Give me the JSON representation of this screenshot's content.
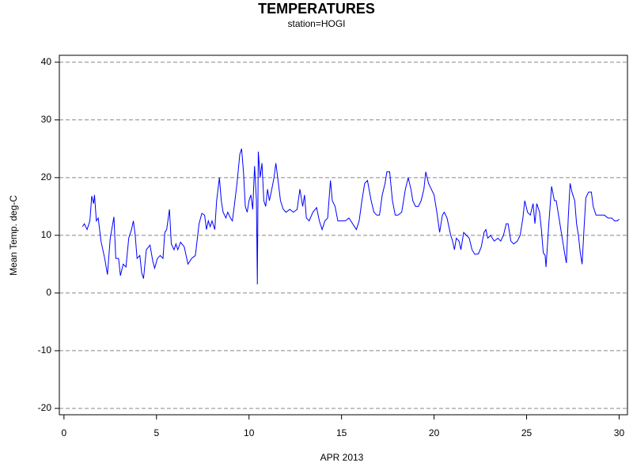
{
  "chart_data": {
    "type": "line",
    "title": "TEMPERATURES",
    "subtitle": "station=HOGI",
    "xlabel": "APR 2013",
    "ylabel": "Mean Temp. deg-C",
    "xlim": [
      -0.25,
      30.45
    ],
    "ylim": [
      -21.1,
      41.2
    ],
    "xticks": [
      0,
      5,
      10,
      15,
      20,
      25,
      30
    ],
    "yticks": [
      -20,
      -10,
      0,
      10,
      20,
      30,
      40
    ],
    "grid": true,
    "x": [
      1.0,
      1.1,
      1.25,
      1.4,
      1.5,
      1.6,
      1.65,
      1.75,
      1.85,
      2.0,
      2.2,
      2.35,
      2.5,
      2.7,
      2.8,
      2.95,
      3.05,
      3.2,
      3.35,
      3.5,
      3.65,
      3.75,
      3.85,
      3.95,
      4.1,
      4.2,
      4.3,
      4.45,
      4.65,
      4.8,
      4.9,
      5.05,
      5.2,
      5.35,
      5.45,
      5.55,
      5.7,
      5.8,
      5.95,
      6.05,
      6.15,
      6.3,
      6.5,
      6.7,
      6.9,
      7.1,
      7.3,
      7.45,
      7.6,
      7.7,
      7.8,
      7.9,
      8.0,
      8.15,
      8.25,
      8.4,
      8.5,
      8.6,
      8.75,
      8.85,
      9.0,
      9.1,
      9.2,
      9.35,
      9.5,
      9.6,
      9.7,
      9.8,
      9.9,
      10.0,
      10.1,
      10.2,
      10.3,
      10.4,
      10.45,
      10.5,
      10.6,
      10.7,
      10.8,
      10.9,
      11.0,
      11.1,
      11.2,
      11.35,
      11.45,
      11.55,
      11.7,
      11.85,
      12.0,
      12.2,
      12.4,
      12.6,
      12.75,
      12.9,
      13.0,
      13.1,
      13.25,
      13.45,
      13.65,
      13.8,
      13.95,
      14.1,
      14.25,
      14.4,
      14.5,
      14.65,
      14.8,
      15.0,
      15.2,
      15.4,
      15.6,
      15.8,
      15.95,
      16.1,
      16.25,
      16.4,
      16.6,
      16.75,
      16.9,
      17.05,
      17.2,
      17.35,
      17.45,
      17.6,
      17.75,
      17.9,
      18.05,
      18.25,
      18.45,
      18.6,
      18.75,
      18.85,
      19.0,
      19.15,
      19.3,
      19.45,
      19.55,
      19.7,
      19.85,
      20.0,
      20.15,
      20.3,
      20.45,
      20.55,
      20.7,
      20.9,
      21.0,
      21.1,
      21.2,
      21.35,
      21.45,
      21.6,
      21.75,
      21.9,
      22.05,
      22.2,
      22.4,
      22.55,
      22.7,
      22.8,
      22.9,
      23.05,
      23.25,
      23.45,
      23.6,
      23.75,
      23.9,
      24.0,
      24.15,
      24.3,
      24.5,
      24.65,
      24.8,
      24.9,
      25.05,
      25.2,
      25.35,
      25.45,
      25.55,
      25.7,
      25.8,
      25.9,
      26.0,
      26.05,
      26.2,
      26.35,
      26.5,
      26.6,
      26.7,
      26.8,
      26.95,
      27.05,
      27.15,
      27.25,
      27.35,
      27.45,
      27.6,
      27.7,
      27.8,
      27.9,
      28.0,
      28.1,
      28.2,
      28.35,
      28.5,
      28.6,
      28.75,
      29.0,
      29.2,
      29.4,
      29.6,
      29.75,
      29.9,
      30.0
    ],
    "series": [
      {
        "color": "#0000ff",
        "values": [
          11.5,
          12,
          11,
          12.5,
          16.8,
          15.5,
          17,
          12.5,
          13,
          9,
          6,
          3.2,
          9.5,
          13.2,
          6,
          6,
          3,
          5,
          4.5,
          9.5,
          11,
          12.5,
          10,
          6,
          6.5,
          3.5,
          2.5,
          7.5,
          8.3,
          5.5,
          4.3,
          6,
          6.5,
          6,
          10.5,
          11,
          14.5,
          8.5,
          7.5,
          8.5,
          7.5,
          8.8,
          8,
          5,
          6,
          6.5,
          12,
          13.8,
          13.5,
          11,
          12.5,
          11.5,
          12.5,
          11,
          16,
          20,
          16,
          14,
          13,
          14,
          13,
          12.5,
          15,
          19,
          24,
          25,
          21,
          15,
          14,
          16,
          17,
          14.5,
          22,
          16,
          1.5,
          24.5,
          20,
          22.5,
          16,
          15,
          18,
          16,
          17.5,
          20,
          22.5,
          20,
          16,
          14.5,
          14,
          14.5,
          14,
          14.5,
          18,
          15,
          17,
          13,
          12.5,
          14,
          14.8,
          12.5,
          11,
          12.5,
          13,
          19.5,
          16,
          15,
          12.5,
          12.5,
          12.5,
          13,
          12,
          11,
          12.5,
          16,
          19,
          19.5,
          16,
          14,
          13.5,
          13.5,
          17,
          19,
          21,
          21,
          16,
          13.5,
          13.5,
          14,
          18,
          20,
          18,
          16,
          15,
          15,
          16,
          18,
          21,
          19,
          18,
          17,
          14,
          10.5,
          13.5,
          14,
          13,
          10,
          9,
          7.5,
          9.5,
          9,
          7.5,
          10.5,
          10,
          9.5,
          7.5,
          6.7,
          6.8,
          8,
          10.5,
          11,
          9.5,
          10,
          9,
          9.5,
          9,
          10,
          12,
          12,
          9,
          8.5,
          9,
          10,
          13,
          16,
          14,
          13.5,
          15.5,
          12,
          15.5,
          14,
          11,
          7,
          6.5,
          4.5,
          12,
          18.5,
          16,
          16,
          14,
          12,
          9,
          7,
          5.2,
          13,
          19,
          17.5,
          16,
          12,
          10,
          7,
          5,
          11,
          16.5,
          17.5,
          17.5,
          15,
          13.5,
          13.5,
          13.5,
          13,
          13,
          12.5,
          12.5,
          12.8
        ]
      }
    ]
  }
}
